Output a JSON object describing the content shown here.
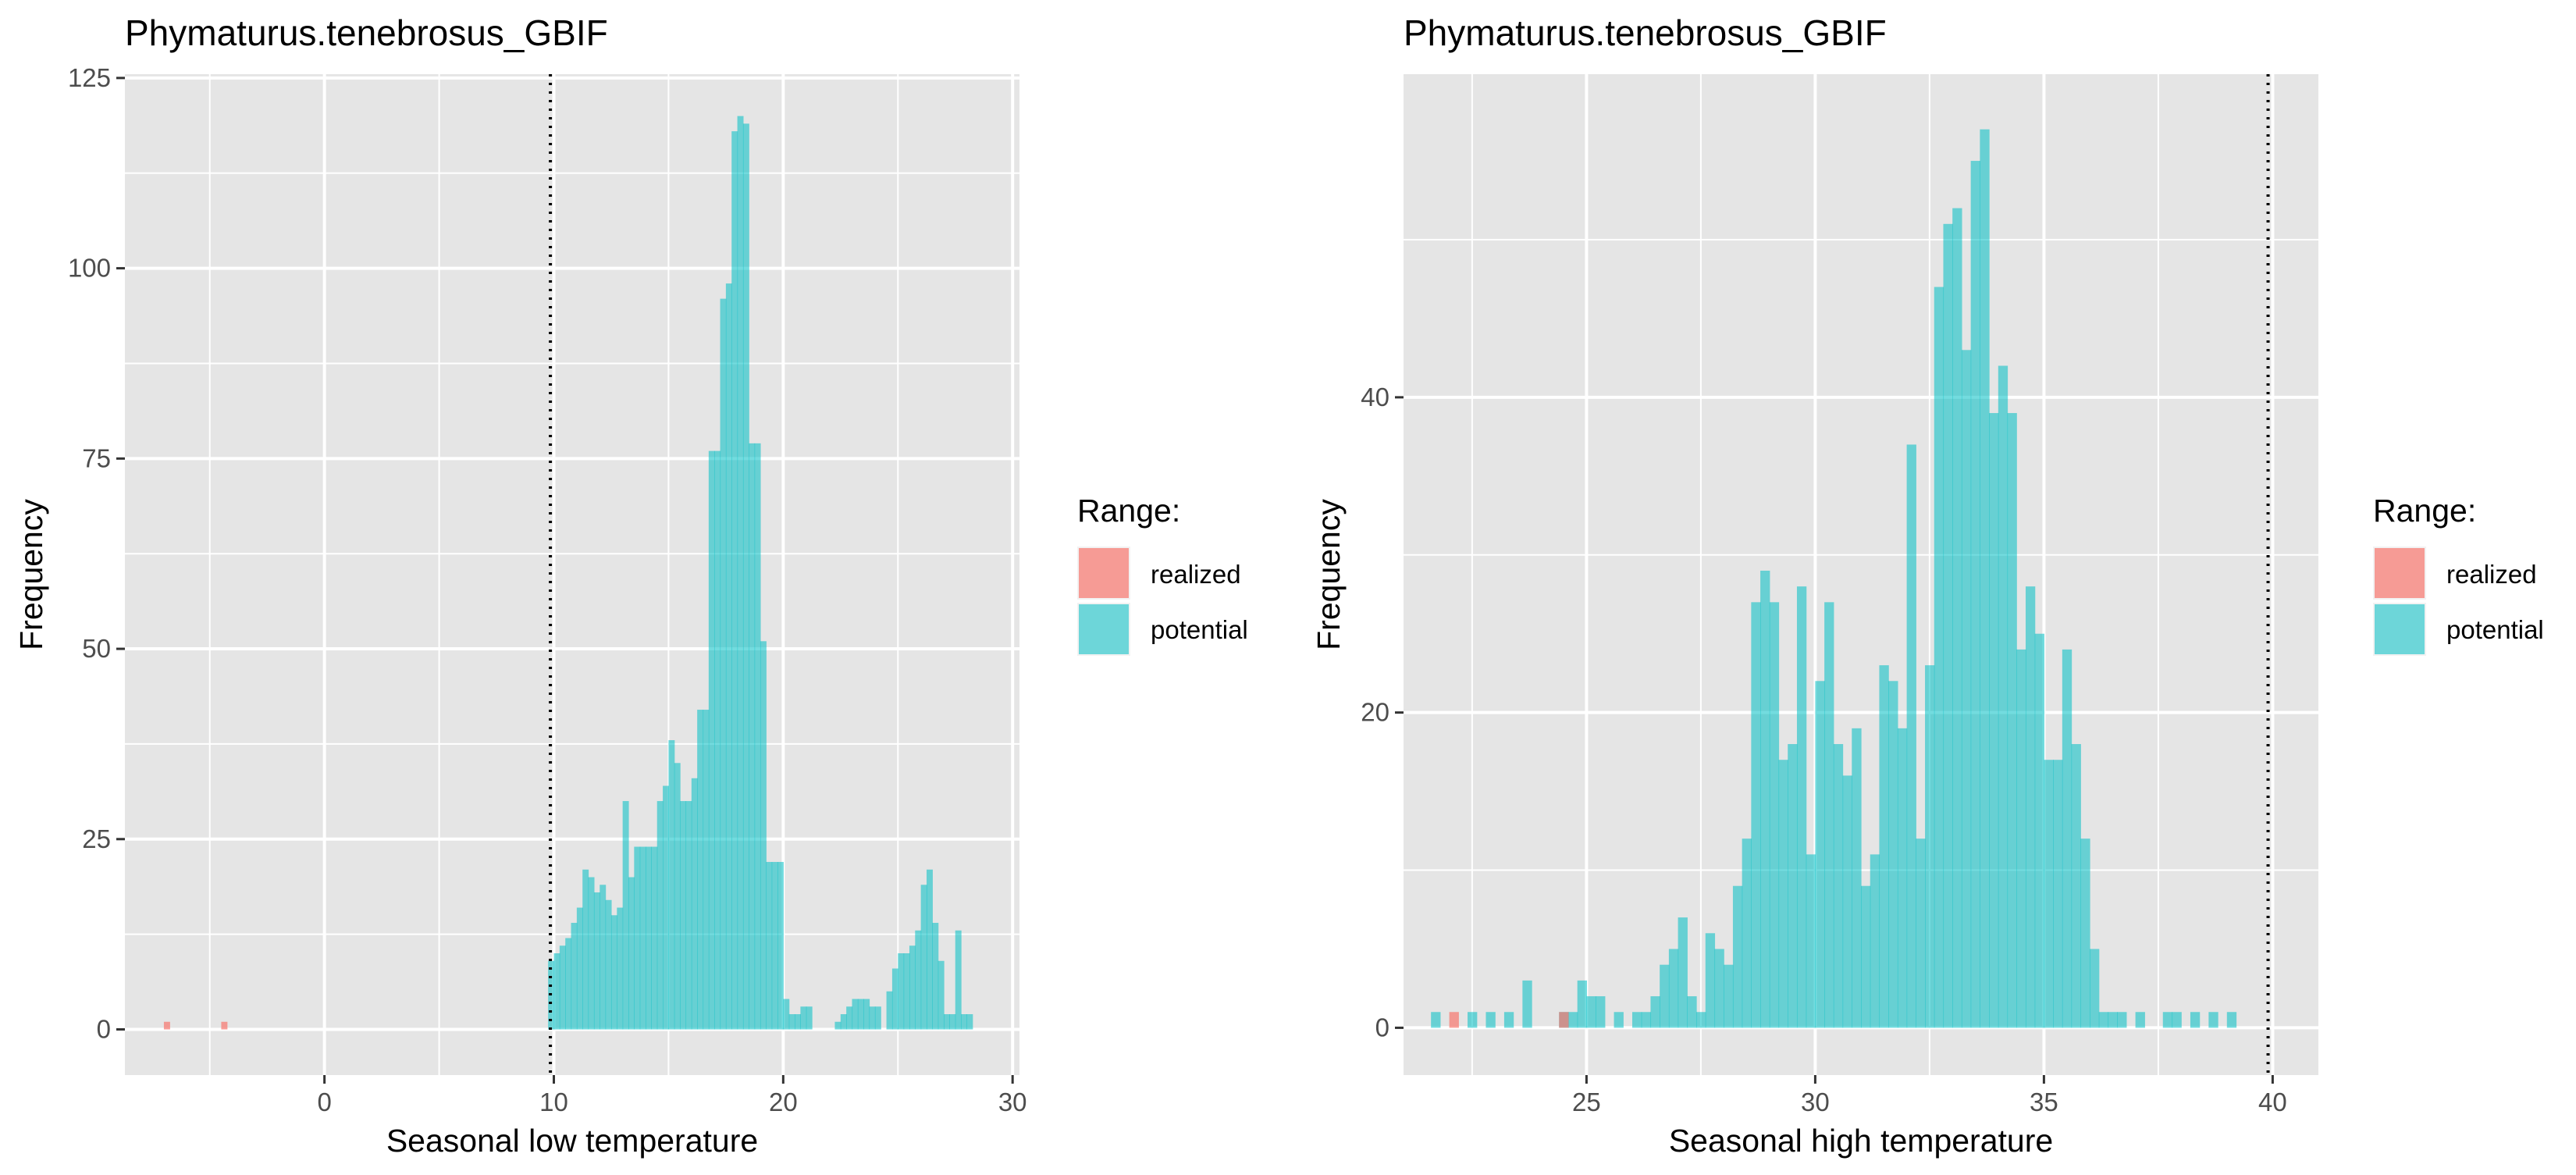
{
  "colors": {
    "panel_bg": "#e5e5e5",
    "grid": "#ffffff",
    "realized": "#f8766d",
    "potential": "#00bfc4",
    "text_dark": "#000000",
    "tick_text": "#4d4d4d",
    "tick_mark": "#333333"
  },
  "legend": {
    "title": "Range:",
    "items": [
      {
        "key": "realized",
        "label": "realized",
        "color": "#f8766d"
      },
      {
        "key": "potential",
        "label": "potential",
        "color": "#00bfc4"
      }
    ]
  },
  "chart_data": [
    {
      "type": "histogram",
      "title": "Phymaturus.tenebrosus_GBIF",
      "xlabel": "Seasonal low temperature",
      "ylabel": "Frequency",
      "xlim": [
        -8.7,
        30.3
      ],
      "ylim": [
        -6,
        125.5
      ],
      "xticks": [
        0,
        10,
        20,
        30
      ],
      "xtick_labels": [
        "0",
        "10",
        "20",
        "30"
      ],
      "xminor": [
        -5,
        5,
        15,
        25
      ],
      "yticks": [
        0,
        25,
        50,
        75,
        100,
        125
      ],
      "ytick_labels": [
        "0",
        "25",
        "50",
        "75",
        "100",
        "125"
      ],
      "yminor": [
        12.5,
        37.5,
        62.5,
        87.5,
        112.5
      ],
      "bin_width": 0.25,
      "vline": 9.85,
      "legend_position": "right",
      "grid": true,
      "series": [
        {
          "name": "realized",
          "bins": [
            [
              -7,
              1
            ],
            [
              -4.5,
              1
            ]
          ]
        },
        {
          "name": "potential",
          "bins": [
            [
              9.75,
              9
            ],
            [
              10,
              10
            ],
            [
              10.25,
              11
            ],
            [
              10.5,
              12
            ],
            [
              10.75,
              14
            ],
            [
              11,
              16
            ],
            [
              11.25,
              21
            ],
            [
              11.5,
              20
            ],
            [
              11.75,
              18
            ],
            [
              12,
              19
            ],
            [
              12.25,
              17
            ],
            [
              12.5,
              15
            ],
            [
              12.75,
              16
            ],
            [
              13,
              30
            ],
            [
              13.25,
              20
            ],
            [
              13.5,
              24
            ],
            [
              13.75,
              24
            ],
            [
              14,
              24
            ],
            [
              14.25,
              24
            ],
            [
              14.5,
              30
            ],
            [
              14.75,
              32
            ],
            [
              15,
              38
            ],
            [
              15.25,
              35
            ],
            [
              15.5,
              30
            ],
            [
              15.75,
              30
            ],
            [
              16,
              33
            ],
            [
              16.25,
              42
            ],
            [
              16.5,
              42
            ],
            [
              16.75,
              76
            ],
            [
              17,
              76
            ],
            [
              17.25,
              96
            ],
            [
              17.5,
              98
            ],
            [
              17.75,
              118
            ],
            [
              18,
              120
            ],
            [
              18.25,
              119
            ],
            [
              18.5,
              77
            ],
            [
              18.75,
              77
            ],
            [
              19,
              51
            ],
            [
              19.25,
              22
            ],
            [
              19.5,
              22
            ],
            [
              19.75,
              22
            ],
            [
              20,
              4
            ],
            [
              20.25,
              2
            ],
            [
              20.5,
              2
            ],
            [
              20.75,
              3
            ],
            [
              21,
              3
            ],
            [
              22.25,
              1
            ],
            [
              22.5,
              2
            ],
            [
              22.75,
              3
            ],
            [
              23,
              4
            ],
            [
              23.25,
              4
            ],
            [
              23.5,
              4
            ],
            [
              23.75,
              3
            ],
            [
              24,
              3
            ],
            [
              24.5,
              5
            ],
            [
              24.75,
              8
            ],
            [
              25,
              10
            ],
            [
              25.25,
              10
            ],
            [
              25.5,
              11
            ],
            [
              25.75,
              13
            ],
            [
              26,
              19
            ],
            [
              26.25,
              21
            ],
            [
              26.5,
              14
            ],
            [
              26.75,
              9
            ],
            [
              27,
              2
            ],
            [
              27.25,
              2
            ],
            [
              27.5,
              13
            ],
            [
              27.75,
              2
            ],
            [
              28,
              2
            ]
          ]
        }
      ]
    },
    {
      "type": "histogram",
      "title": "Phymaturus.tenebrosus_GBIF",
      "xlabel": "Seasonal high temperature",
      "ylabel": "Frequency",
      "xlim": [
        21,
        41
      ],
      "ylim": [
        -3,
        60.5
      ],
      "xticks": [
        25,
        30,
        35,
        40
      ],
      "xtick_labels": [
        "25",
        "30",
        "35",
        "40"
      ],
      "xminor": [
        22.5,
        27.5,
        32.5,
        37.5
      ],
      "yticks": [
        0,
        20,
        40
      ],
      "ytick_labels": [
        "0",
        "20",
        "40"
      ],
      "yminor": [
        10,
        30,
        50
      ],
      "bin_width": 0.2,
      "vline": 39.9,
      "legend_position": "right",
      "grid": true,
      "series": [
        {
          "name": "realized",
          "bins": [
            [
              22,
              1
            ],
            [
              24.4,
              1
            ]
          ]
        },
        {
          "name": "potential",
          "bins": [
            [
              21.6,
              1
            ],
            [
              22.4,
              1
            ],
            [
              22.8,
              1
            ],
            [
              23.2,
              1
            ],
            [
              23.6,
              3
            ],
            [
              24.4,
              1
            ],
            [
              24.6,
              1
            ],
            [
              24.8,
              3
            ],
            [
              25,
              2
            ],
            [
              25.2,
              2
            ],
            [
              25.6,
              1
            ],
            [
              26,
              1
            ],
            [
              26.2,
              1
            ],
            [
              26.4,
              2
            ],
            [
              26.6,
              4
            ],
            [
              26.8,
              5
            ],
            [
              27,
              7
            ],
            [
              27.2,
              2
            ],
            [
              27.4,
              1
            ],
            [
              27.6,
              6
            ],
            [
              27.8,
              5
            ],
            [
              28,
              4
            ],
            [
              28.2,
              9
            ],
            [
              28.4,
              12
            ],
            [
              28.6,
              27
            ],
            [
              28.8,
              29
            ],
            [
              29,
              27
            ],
            [
              29.2,
              17
            ],
            [
              29.4,
              18
            ],
            [
              29.6,
              28
            ],
            [
              29.8,
              11
            ],
            [
              30,
              22
            ],
            [
              30.2,
              27
            ],
            [
              30.4,
              18
            ],
            [
              30.6,
              16
            ],
            [
              30.8,
              19
            ],
            [
              31,
              9
            ],
            [
              31.2,
              11
            ],
            [
              31.4,
              23
            ],
            [
              31.6,
              22
            ],
            [
              31.8,
              19
            ],
            [
              32,
              37
            ],
            [
              32.2,
              12
            ],
            [
              32.4,
              23
            ],
            [
              32.6,
              47
            ],
            [
              32.8,
              51
            ],
            [
              33,
              52
            ],
            [
              33.2,
              43
            ],
            [
              33.4,
              55
            ],
            [
              33.6,
              57
            ],
            [
              33.8,
              39
            ],
            [
              34,
              42
            ],
            [
              34.2,
              39
            ],
            [
              34.4,
              24
            ],
            [
              34.6,
              28
            ],
            [
              34.8,
              25
            ],
            [
              35,
              17
            ],
            [
              35.2,
              17
            ],
            [
              35.4,
              24
            ],
            [
              35.6,
              18
            ],
            [
              35.8,
              12
            ],
            [
              36,
              5
            ],
            [
              36.2,
              1
            ],
            [
              36.4,
              1
            ],
            [
              36.6,
              1
            ],
            [
              37,
              1
            ],
            [
              37.6,
              1
            ],
            [
              37.8,
              1
            ],
            [
              38.2,
              1
            ],
            [
              38.6,
              1
            ],
            [
              39,
              1
            ]
          ]
        }
      ]
    }
  ]
}
